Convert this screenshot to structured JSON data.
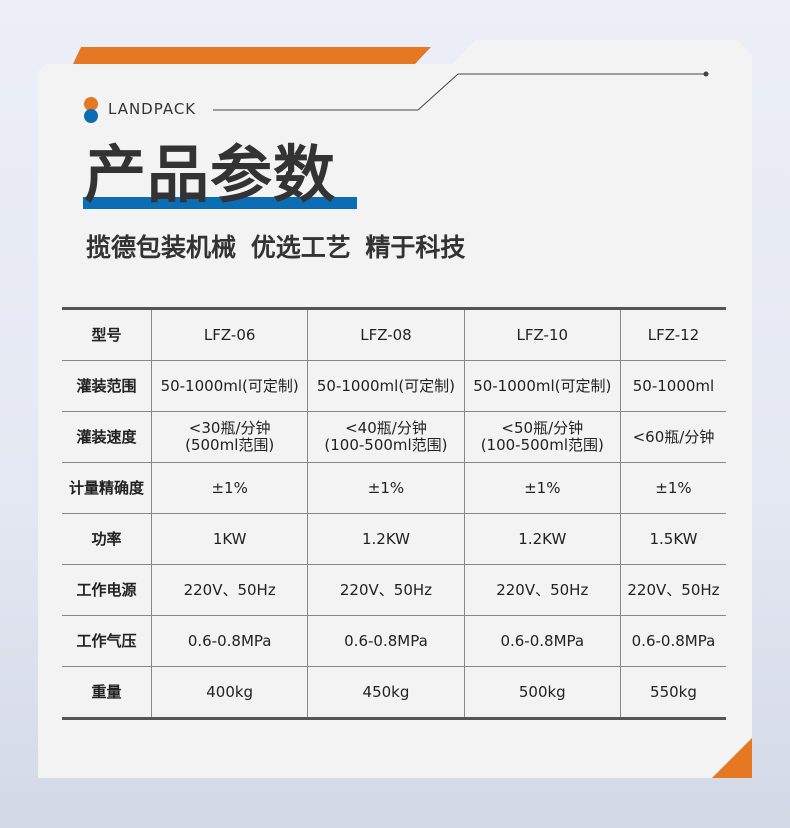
{
  "brand": "LANDPACK",
  "title": "产品参数",
  "subtitle": "揽德包装机械  优选工艺  精于科技",
  "colors": {
    "orange": "#e67823",
    "blue": "#0b6db4"
  },
  "table": {
    "rows": [
      {
        "label": "型号",
        "values": [
          "LFZ-06",
          "LFZ-08",
          "LFZ-10",
          "LFZ-12"
        ]
      },
      {
        "label": "灌装范围",
        "values": [
          "50-1000ml(可定制)",
          "50-1000ml(可定制)",
          "50-1000ml(可定制)",
          "50-1000ml"
        ]
      },
      {
        "label": "灌装速度",
        "values": [
          "<30瓶/分钟",
          "<40瓶/分钟",
          "<50瓶/分钟",
          "<60瓶/分钟"
        ],
        "notes": [
          "(500ml范围)",
          "(100-500ml范围)",
          "(100-500ml范围)",
          ""
        ]
      },
      {
        "label": "计量精确度",
        "values": [
          "±1%",
          "±1%",
          "±1%",
          "±1%"
        ]
      },
      {
        "label": "功率",
        "values": [
          "1KW",
          "1.2KW",
          "1.2KW",
          "1.5KW"
        ]
      },
      {
        "label": "工作电源",
        "values": [
          "220V、50Hz",
          "220V、50Hz",
          "220V、50Hz",
          "220V、50Hz"
        ]
      },
      {
        "label": "工作气压",
        "values": [
          "0.6-0.8MPa",
          "0.6-0.8MPa",
          "0.6-0.8MPa",
          "0.6-0.8MPa"
        ]
      },
      {
        "label": "重量",
        "values": [
          "400kg",
          "450kg",
          "500kg",
          "550kg"
        ]
      }
    ]
  }
}
